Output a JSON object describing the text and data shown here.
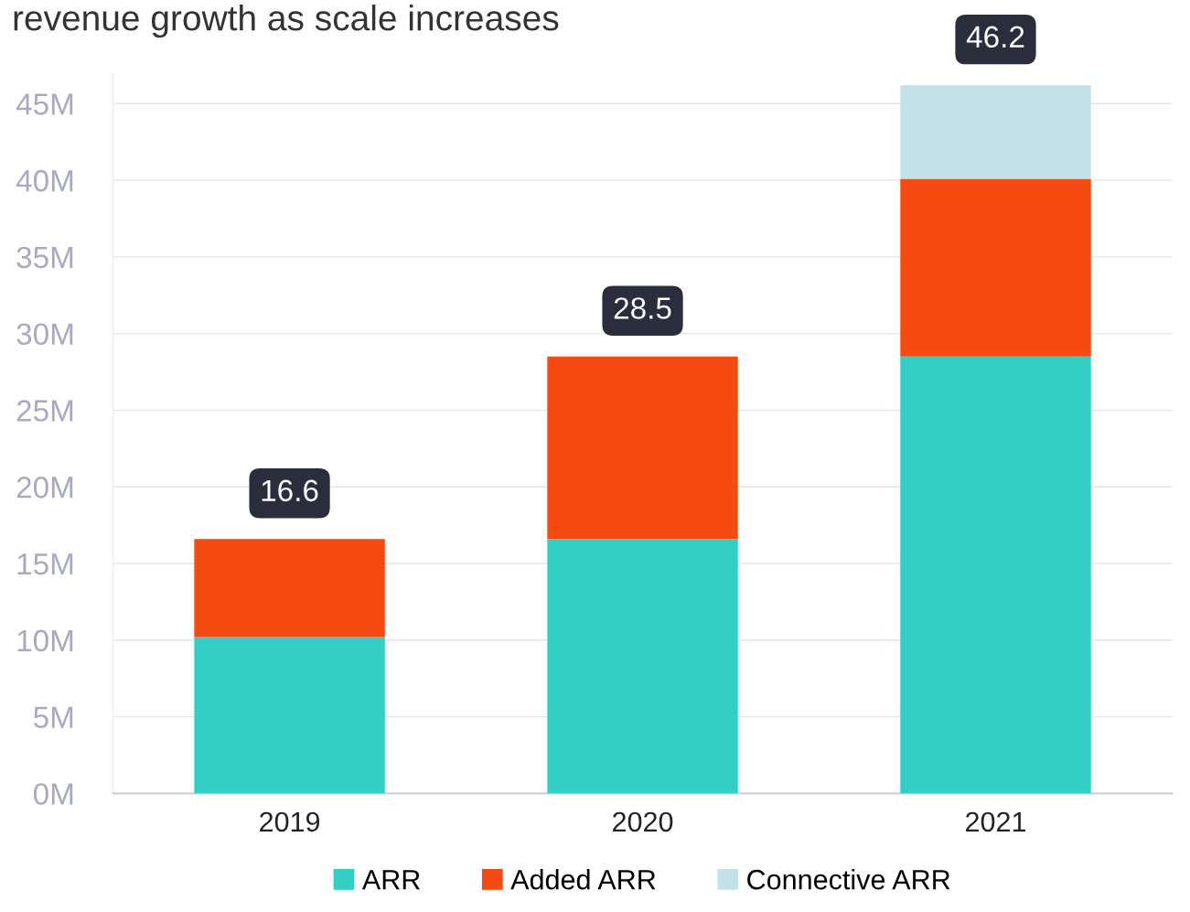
{
  "chart_data": {
    "type": "bar",
    "title": "revenue growth as scale increases",
    "categories": [
      "2019",
      "2020",
      "2021"
    ],
    "series": [
      {
        "name": "ARR",
        "color": "#33cfc5",
        "values": [
          10.2,
          16.6,
          28.5
        ]
      },
      {
        "name": "Added ARR",
        "color": "#f54b13",
        "values": [
          6.4,
          11.9,
          11.6
        ]
      },
      {
        "name": "Connective ARR",
        "color": "#c2e1e8",
        "values": [
          null,
          null,
          6.1
        ]
      }
    ],
    "stacked": true,
    "totals": [
      "16.6",
      "28.5",
      "46.2"
    ],
    "ylim": [
      0,
      47
    ],
    "yticks": [
      {
        "value": 0,
        "label": "0M"
      },
      {
        "value": 5,
        "label": "5M"
      },
      {
        "value": 10,
        "label": "10M"
      },
      {
        "value": 15,
        "label": "15M"
      },
      {
        "value": 20,
        "label": "20M"
      },
      {
        "value": 25,
        "label": "25M"
      },
      {
        "value": 30,
        "label": "30M"
      },
      {
        "value": 35,
        "label": "35M"
      },
      {
        "value": 40,
        "label": "40M"
      },
      {
        "value": 45,
        "label": "45M"
      }
    ],
    "grid": "y",
    "legend": "bottom"
  }
}
